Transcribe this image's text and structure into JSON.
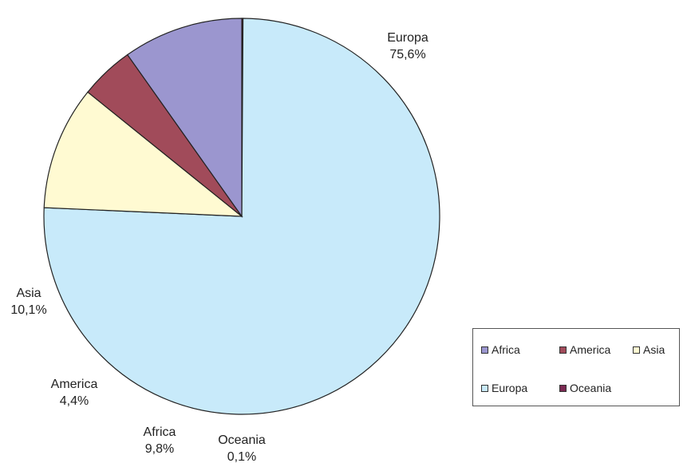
{
  "chart_data": {
    "type": "pie",
    "title": "",
    "slices": [
      {
        "label": "Oceania",
        "value": 0.1,
        "value_label": "0,1%",
        "color": "#7a2a52"
      },
      {
        "label": "Europa",
        "value": 75.6,
        "value_label": "75,6%",
        "color": "#c8eafa"
      },
      {
        "label": "Asia",
        "value": 10.1,
        "value_label": "10,1%",
        "color": "#fffad2"
      },
      {
        "label": "America",
        "value": 4.4,
        "value_label": "4,4%",
        "color": "#a14b5a"
      },
      {
        "label": "Africa",
        "value": 9.8,
        "value_label": "9,8%",
        "color": "#9b96cf"
      }
    ],
    "legend": {
      "position": "bottom-right",
      "entries": [
        {
          "label": "Africa",
          "color": "#9b96cf"
        },
        {
          "label": "America",
          "color": "#a14b5a"
        },
        {
          "label": "Asia",
          "color": "#fffad2"
        },
        {
          "label": "Europa",
          "color": "#c8eafa"
        },
        {
          "label": "Oceania",
          "color": "#7a2a52"
        }
      ]
    }
  }
}
